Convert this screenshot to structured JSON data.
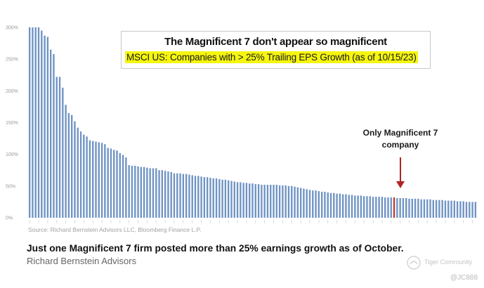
{
  "chart_data": {
    "type": "bar",
    "title": "The Magnificent 7 don't appear so magnificent",
    "subtitle": "MSCI US: Companies with > 25% Trailing EPS Growth (as of 10/15/23)",
    "ylim": [
      0,
      300
    ],
    "yticks": [
      "0%",
      "50%",
      "100%",
      "150%",
      "200%",
      "250%",
      "300%"
    ],
    "ytick_values": [
      0,
      50,
      100,
      150,
      200,
      250,
      300
    ],
    "grid": false,
    "bar_color": "#6f93c3",
    "highlight_color": "#c0392b",
    "highlight_index": 121,
    "annotation": "Only Magnificent 7 company",
    "values": [
      300,
      300,
      300,
      300,
      295,
      287,
      285,
      265,
      258,
      222,
      222,
      205,
      178,
      165,
      162,
      152,
      142,
      136,
      131,
      128,
      122,
      121,
      120,
      119,
      118,
      116,
      110,
      109,
      107,
      106,
      102,
      99,
      95,
      83,
      82,
      82,
      81,
      80,
      80,
      79,
      78,
      78,
      78,
      75,
      75,
      74,
      73,
      72,
      70,
      70,
      70,
      69,
      69,
      68,
      67,
      66,
      66,
      65,
      64,
      64,
      63,
      62,
      62,
      61,
      60,
      60,
      59,
      58,
      57,
      56,
      56,
      55,
      55,
      54,
      54,
      53,
      53,
      52,
      52,
      52,
      52,
      52,
      52,
      51,
      51,
      51,
      50,
      50,
      49,
      48,
      47,
      46,
      45,
      44,
      43,
      43,
      42,
      41,
      41,
      40,
      39,
      39,
      38,
      38,
      37,
      37,
      36,
      36,
      35,
      35,
      35,
      34,
      34,
      34,
      33,
      33,
      33,
      33,
      32,
      32,
      32,
      32,
      31,
      31,
      31,
      31,
      30,
      30,
      30,
      30,
      29,
      29,
      29,
      29,
      28,
      28,
      28,
      28,
      27,
      27,
      27,
      27,
      26,
      26,
      26,
      25,
      25,
      25,
      25
    ]
  },
  "source": "Source: Richard Bernstein Advisors LLC, Bloomberg Finance L.P.",
  "caption": "Just one Magnificent 7 firm posted more than 25% earnings growth as of October.",
  "credit": "Richard Bernstein Advisors",
  "watermark": {
    "brand": "Tiger Community",
    "user": "@JC888"
  }
}
